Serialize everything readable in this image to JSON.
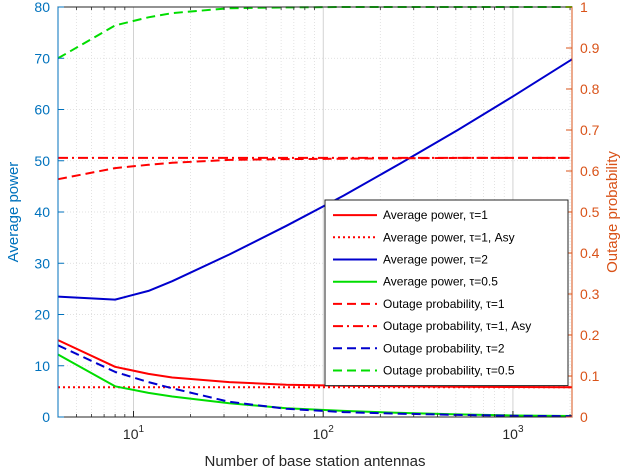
{
  "chart_data": {
    "type": "line",
    "xlabel": "Number of base station antennas",
    "ylabel_left": "Average power",
    "ylabel_right": "Outage probability",
    "xscale": "log",
    "xlim": [
      4,
      2048
    ],
    "ylim_left": [
      0,
      80
    ],
    "ylim_right": [
      0,
      1
    ],
    "grid": "on",
    "legend_position": "right",
    "x_ticks": [
      {
        "base": "10",
        "exp": "1",
        "value": 10
      },
      {
        "base": "10",
        "exp": "2",
        "value": 100
      },
      {
        "base": "10",
        "exp": "3",
        "value": 1000
      }
    ],
    "y_left_ticks": [
      "0",
      "10",
      "20",
      "30",
      "40",
      "50",
      "60",
      "70",
      "80"
    ],
    "y_right_ticks": [
      "0",
      "0.1",
      "0.2",
      "0.3",
      "0.4",
      "0.5",
      "0.6",
      "0.7",
      "0.8",
      "0.9",
      "1"
    ],
    "series": [
      {
        "name": "Average power, τ=1",
        "axis": "left",
        "color": "#FF0000",
        "style": "solid",
        "x": [
          4,
          8,
          12,
          16,
          32,
          64,
          128,
          256,
          512,
          1024,
          2048
        ],
        "y": [
          15.0,
          9.8,
          8.4,
          7.7,
          6.8,
          6.3,
          6.1,
          6.0,
          5.9,
          5.85,
          5.8
        ]
      },
      {
        "name": "Average power, τ=1, Asy",
        "axis": "left",
        "color": "#FF0000",
        "style": "dotted",
        "x": [
          4,
          2048
        ],
        "y": [
          5.8,
          5.8
        ]
      },
      {
        "name": "Average power, τ=2",
        "axis": "left",
        "color": "#0000CD",
        "style": "solid",
        "x": [
          4,
          8,
          12,
          16,
          32,
          64,
          128,
          256,
          512,
          1024,
          2048
        ],
        "y": [
          23.5,
          22.9,
          24.6,
          26.5,
          31.7,
          37.3,
          43.2,
          49.5,
          56.0,
          62.8,
          69.8
        ]
      },
      {
        "name": "Average power, τ=0.5",
        "axis": "left",
        "color": "#00DD00",
        "style": "solid",
        "x": [
          4,
          8,
          12,
          16,
          32,
          64,
          128,
          256,
          512,
          1024,
          2048
        ],
        "y": [
          12.2,
          6.0,
          4.7,
          4.0,
          2.7,
          1.7,
          1.2,
          0.8,
          0.5,
          0.3,
          0.2
        ]
      },
      {
        "name": "Outage probability, τ=1",
        "axis": "right",
        "color": "#FF0000",
        "style": "dashed",
        "x": [
          4,
          8,
          12,
          16,
          32,
          64,
          128,
          256,
          512,
          1024,
          2048
        ],
        "y": [
          0.58,
          0.607,
          0.615,
          0.62,
          0.627,
          0.629,
          0.63,
          0.631,
          0.632,
          0.632,
          0.632
        ]
      },
      {
        "name": "Outage probability, τ=1, Asy",
        "axis": "right",
        "color": "#FF0000",
        "style": "dashdot",
        "x": [
          4,
          2048
        ],
        "y": [
          0.632,
          0.632
        ]
      },
      {
        "name": "Outage probability, τ=2",
        "axis": "right",
        "color": "#0000CD",
        "style": "dashed",
        "x": [
          4,
          8,
          12,
          16,
          32,
          64,
          128,
          256,
          512,
          1024,
          2048
        ],
        "y": [
          0.175,
          0.11,
          0.085,
          0.07,
          0.037,
          0.02,
          0.012,
          0.008,
          0.005,
          0.003,
          0.002
        ]
      },
      {
        "name": "Outage probability, τ=0.5",
        "axis": "right",
        "color": "#00DD00",
        "style": "dashed",
        "x": [
          4,
          8,
          12,
          16,
          32,
          64,
          128,
          256,
          512,
          1024,
          2048
        ],
        "y": [
          0.875,
          0.955,
          0.975,
          0.985,
          0.997,
          0.999,
          1.0,
          1.0,
          1.0,
          1.0,
          1.0
        ]
      }
    ]
  }
}
